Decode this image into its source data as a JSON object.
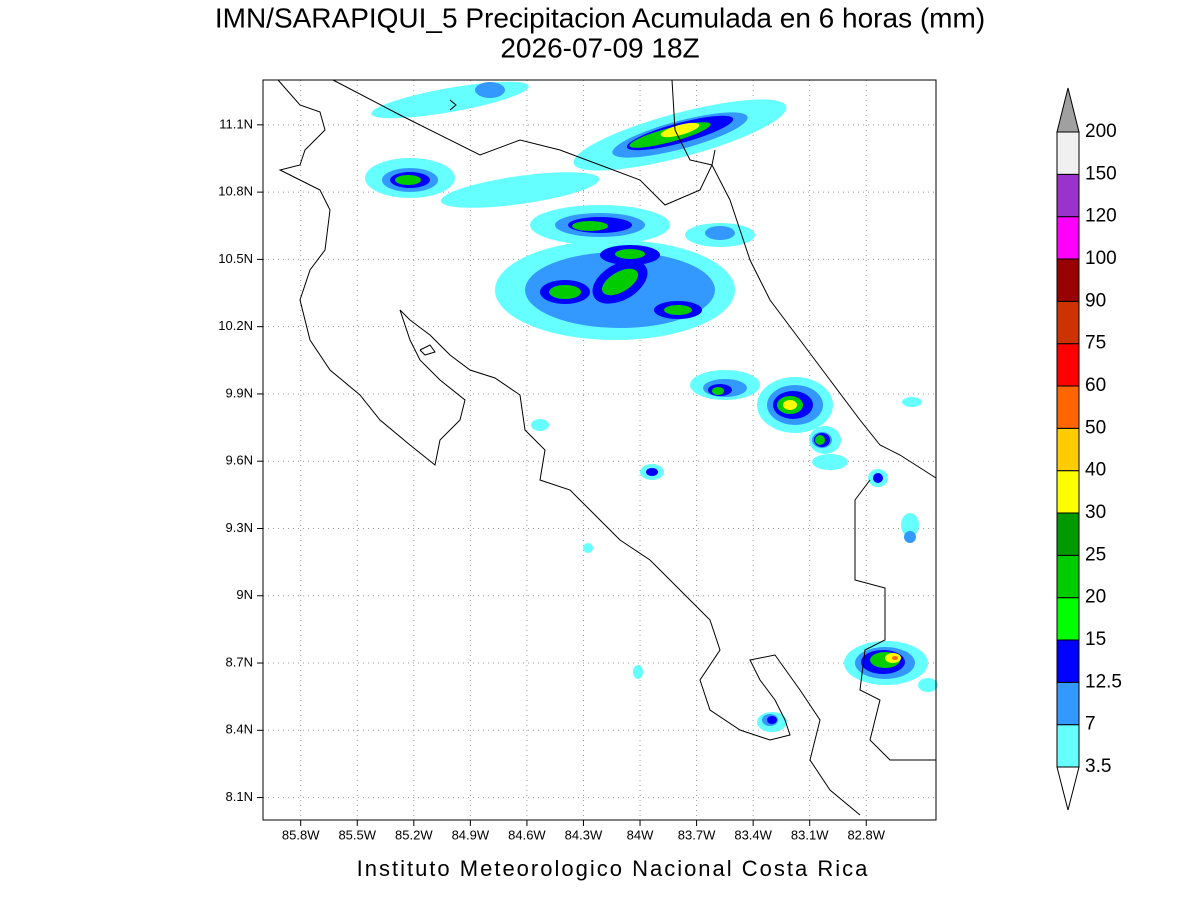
{
  "header": {
    "title": "IMN/SARAPIQUI_5 Precipitacion Acumulada en 6 horas (mm)",
    "subtitle": "2026-07-09 18Z"
  },
  "map": {
    "xlim": [
      -86.0,
      -82.43
    ],
    "ylim": [
      8.0,
      11.3
    ],
    "xticks": [
      {
        "value": -85.8,
        "label": "85.8W"
      },
      {
        "value": -85.5,
        "label": "85.5W"
      },
      {
        "value": -85.2,
        "label": "85.2W"
      },
      {
        "value": -84.9,
        "label": "84.9W"
      },
      {
        "value": -84.6,
        "label": "84.6W"
      },
      {
        "value": -84.3,
        "label": "84.3W"
      },
      {
        "value": -84.0,
        "label": "84W"
      },
      {
        "value": -83.7,
        "label": "83.7W"
      },
      {
        "value": -83.4,
        "label": "83.4W"
      },
      {
        "value": -83.1,
        "label": "83.1W"
      },
      {
        "value": -82.8,
        "label": "82.8W"
      }
    ],
    "yticks": [
      {
        "value": 8.1,
        "label": "8.1N"
      },
      {
        "value": 8.4,
        "label": "8.4N"
      },
      {
        "value": 8.7,
        "label": "8.7N"
      },
      {
        "value": 9.0,
        "label": "9N"
      },
      {
        "value": 9.3,
        "label": "9.3N"
      },
      {
        "value": 9.6,
        "label": "9.6N"
      },
      {
        "value": 9.9,
        "label": "9.9N"
      },
      {
        "value": 10.2,
        "label": "10.2N"
      },
      {
        "value": 10.5,
        "label": "10.5N"
      },
      {
        "value": 10.8,
        "label": "10.8N"
      },
      {
        "value": 11.1,
        "label": "11.1N"
      }
    ],
    "grid": true
  },
  "colorbar": {
    "levels": [
      3.5,
      7,
      12.5,
      15,
      20,
      25,
      30,
      40,
      50,
      60,
      75,
      90,
      100,
      120,
      150,
      200
    ],
    "colors": [
      "#ffffff",
      "#66ffff",
      "#3399ff",
      "#0000ff",
      "#00ff00",
      "#00cc00",
      "#009900",
      "#ffff00",
      "#ffcc00",
      "#ff6600",
      "#ff0000",
      "#cc3300",
      "#990000",
      "#ff00ff",
      "#9933cc",
      "#f0f0f0",
      "#a0a0a0"
    ]
  },
  "footer": "Instituto Meteorologico Nacional Costa Rica"
}
